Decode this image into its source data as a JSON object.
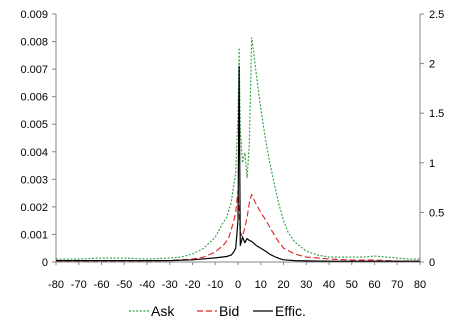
{
  "chart_data": {
    "type": "line",
    "title": "",
    "xlabel": "",
    "ylabel": "",
    "y2label": "",
    "xlim": [
      -80,
      80
    ],
    "ylim": [
      0,
      0.009
    ],
    "y2lim": [
      0,
      2.5
    ],
    "x_ticks": [
      "-80",
      "-70",
      "-60",
      "-50",
      "-40",
      "-30",
      "-20",
      "-10",
      "0",
      "10",
      "20",
      "30",
      "40",
      "50",
      "60",
      "70",
      "80"
    ],
    "y_ticks": [
      "0",
      "0.001",
      "0.002",
      "0.003",
      "0.004",
      "0.005",
      "0.006",
      "0.007",
      "0.008",
      "0.009"
    ],
    "y2_ticks": [
      "0",
      "0.5",
      "1",
      "1.5",
      "2",
      "2.5"
    ],
    "grid": false,
    "legend_position": "bottom",
    "series": [
      {
        "name": "Ask",
        "axis": "right",
        "color": "#2e9e3e",
        "dash": "dotted",
        "points": [
          [
            -80,
            0.03
          ],
          [
            -70,
            0.03
          ],
          [
            -60,
            0.04
          ],
          [
            -50,
            0.04
          ],
          [
            -40,
            0.03
          ],
          [
            -30,
            0.04
          ],
          [
            -25,
            0.05
          ],
          [
            -20,
            0.08
          ],
          [
            -15,
            0.14
          ],
          [
            -10,
            0.25
          ],
          [
            -7,
            0.38
          ],
          [
            -5,
            0.45
          ],
          [
            -3,
            0.6
          ],
          [
            -2,
            0.75
          ],
          [
            -1,
            0.9
          ],
          [
            0,
            1.5
          ],
          [
            0.5,
            2.16
          ],
          [
            1,
            1.35
          ],
          [
            2,
            1.0
          ],
          [
            3,
            1.1
          ],
          [
            4,
            0.85
          ],
          [
            5,
            1.2
          ],
          [
            6,
            2.26
          ],
          [
            7,
            2.1
          ],
          [
            8,
            1.9
          ],
          [
            10,
            1.55
          ],
          [
            12,
            1.25
          ],
          [
            14,
            1.0
          ],
          [
            16,
            0.78
          ],
          [
            18,
            0.58
          ],
          [
            20,
            0.42
          ],
          [
            22,
            0.3
          ],
          [
            25,
            0.2
          ],
          [
            30,
            0.11
          ],
          [
            35,
            0.07
          ],
          [
            40,
            0.05
          ],
          [
            45,
            0.05
          ],
          [
            50,
            0.05
          ],
          [
            55,
            0.05
          ],
          [
            60,
            0.06
          ],
          [
            65,
            0.05
          ],
          [
            70,
            0.04
          ],
          [
            75,
            0.03
          ],
          [
            80,
            0.03
          ]
        ]
      },
      {
        "name": "Bid",
        "axis": "right",
        "color": "#e02020",
        "dash": "dashed",
        "points": [
          [
            -80,
            0.01
          ],
          [
            -60,
            0.01
          ],
          [
            -40,
            0.01
          ],
          [
            -30,
            0.015
          ],
          [
            -20,
            0.03
          ],
          [
            -15,
            0.05
          ],
          [
            -10,
            0.1
          ],
          [
            -6,
            0.18
          ],
          [
            -4,
            0.25
          ],
          [
            -2,
            0.4
          ],
          [
            -1,
            0.5
          ],
          [
            0,
            0.72
          ],
          [
            1,
            0.3
          ],
          [
            2,
            0.25
          ],
          [
            3,
            0.35
          ],
          [
            4,
            0.45
          ],
          [
            5,
            0.6
          ],
          [
            6,
            0.68
          ],
          [
            8,
            0.58
          ],
          [
            10,
            0.5
          ],
          [
            12,
            0.43
          ],
          [
            14,
            0.35
          ],
          [
            16,
            0.27
          ],
          [
            18,
            0.2
          ],
          [
            20,
            0.14
          ],
          [
            25,
            0.08
          ],
          [
            30,
            0.05
          ],
          [
            40,
            0.03
          ],
          [
            50,
            0.02
          ],
          [
            60,
            0.02
          ],
          [
            70,
            0.01
          ],
          [
            80,
            0.01
          ]
        ]
      },
      {
        "name": "Effic.",
        "axis": "left",
        "color": "#000000",
        "dash": "solid",
        "points": [
          [
            -80,
            5e-05
          ],
          [
            -60,
            5e-05
          ],
          [
            -40,
            5e-05
          ],
          [
            -30,
            5e-05
          ],
          [
            -20,
            8e-05
          ],
          [
            -10,
            0.00015
          ],
          [
            -5,
            0.0002
          ],
          [
            -3,
            0.00025
          ],
          [
            -2,
            0.00035
          ],
          [
            -1,
            0.0005
          ],
          [
            0,
            0.0015
          ],
          [
            0.5,
            0.0071
          ],
          [
            1,
            0.0006
          ],
          [
            2,
            0.0009
          ],
          [
            3,
            0.0007
          ],
          [
            4,
            0.00085
          ],
          [
            5,
            0.00078
          ],
          [
            6,
            0.00075
          ],
          [
            8,
            0.0006
          ],
          [
            10,
            0.0005
          ],
          [
            12,
            0.0004
          ],
          [
            14,
            0.00028
          ],
          [
            16,
            0.0002
          ],
          [
            18,
            0.00013
          ],
          [
            20,
            8e-05
          ],
          [
            25,
            5e-05
          ],
          [
            30,
            4e-05
          ],
          [
            40,
            3e-05
          ],
          [
            60,
            3e-05
          ],
          [
            80,
            3e-05
          ]
        ]
      }
    ]
  }
}
